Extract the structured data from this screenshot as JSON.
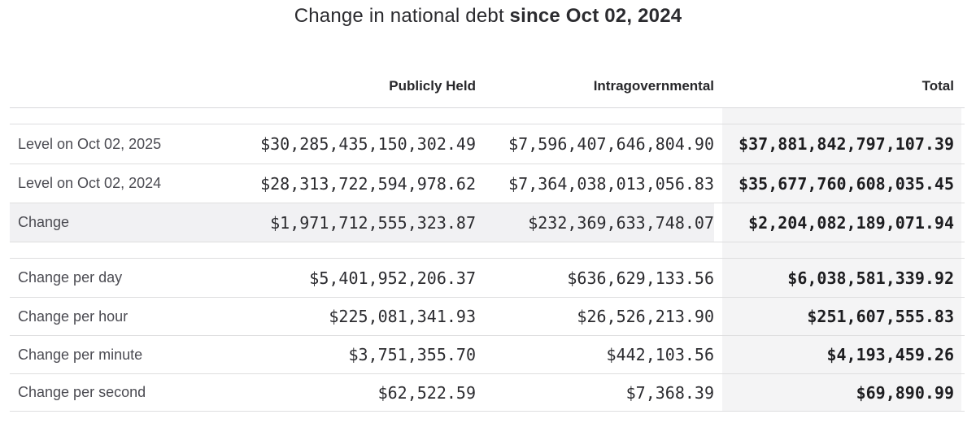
{
  "title": {
    "prefix": "Change in national debt",
    "emphasis": "since Oct 02, 2024"
  },
  "chart_data": {
    "type": "table",
    "title": "Change in national debt since Oct 02, 2024",
    "columns": [
      "Publicly Held",
      "Intragovernmental",
      "Total"
    ],
    "highlighted_row": "Change",
    "highlighted_column": "Total",
    "sections": [
      {
        "rows": [
          [
            "Level on Oct 02, 2025",
            "$30,285,435,150,302.49",
            "$7,596,407,646,804.90",
            "$37,881,842,797,107.39"
          ],
          [
            "Level on Oct 02, 2024",
            "$28,313,722,594,978.62",
            "$7,364,038,013,056.83",
            "$35,677,760,608,035.45"
          ],
          [
            "Change",
            "$1,971,712,555,323.87",
            "$232,369,633,748.07",
            "$2,204,082,189,071.94"
          ]
        ]
      },
      {
        "rows": [
          [
            "Change per day",
            "$5,401,952,206.37",
            "$636,629,133.56",
            "$6,038,581,339.92"
          ],
          [
            "Change per hour",
            "$225,081,341.93",
            "$26,526,213.90",
            "$251,607,555.83"
          ],
          [
            "Change per minute",
            "$3,751,355.70",
            "$442,103.56",
            "$4,193,459.26"
          ],
          [
            "Change per second",
            "$62,522.59",
            "$7,368.39",
            "$69,890.99"
          ]
        ]
      }
    ]
  },
  "colors": {
    "highlight_row_bg": "#f1f1f3",
    "total_column_bg": "#f4f4f5",
    "rule": "#dededf",
    "label_text": "#4b4b52",
    "number_text": "#2b2b2f",
    "total_text": "#1d1d20"
  }
}
